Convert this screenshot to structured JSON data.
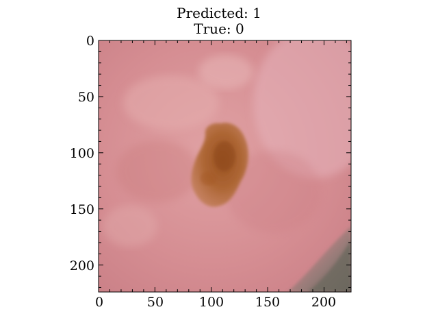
{
  "figure": {
    "title_line1": "Predicted: 1",
    "title_line2": "True: 0"
  },
  "axes": {
    "xlim": [
      0,
      224
    ],
    "ylim": [
      224,
      0
    ],
    "x_ticks": [
      0,
      50,
      100,
      150,
      200
    ],
    "y_ticks": [
      0,
      50,
      100,
      150,
      200
    ],
    "x_ticks_labels": [
      "0",
      "50",
      "100",
      "150",
      "200"
    ],
    "y_ticks_labels": [
      "0",
      "50",
      "100",
      "150",
      "200"
    ]
  },
  "image": {
    "subject": "skin lesion photograph",
    "skin_color": "#d98f95",
    "lesion_color": "#b06a3a",
    "lesion_center_color": "#9c5424",
    "shadow_color": "#7f7a6e"
  }
}
